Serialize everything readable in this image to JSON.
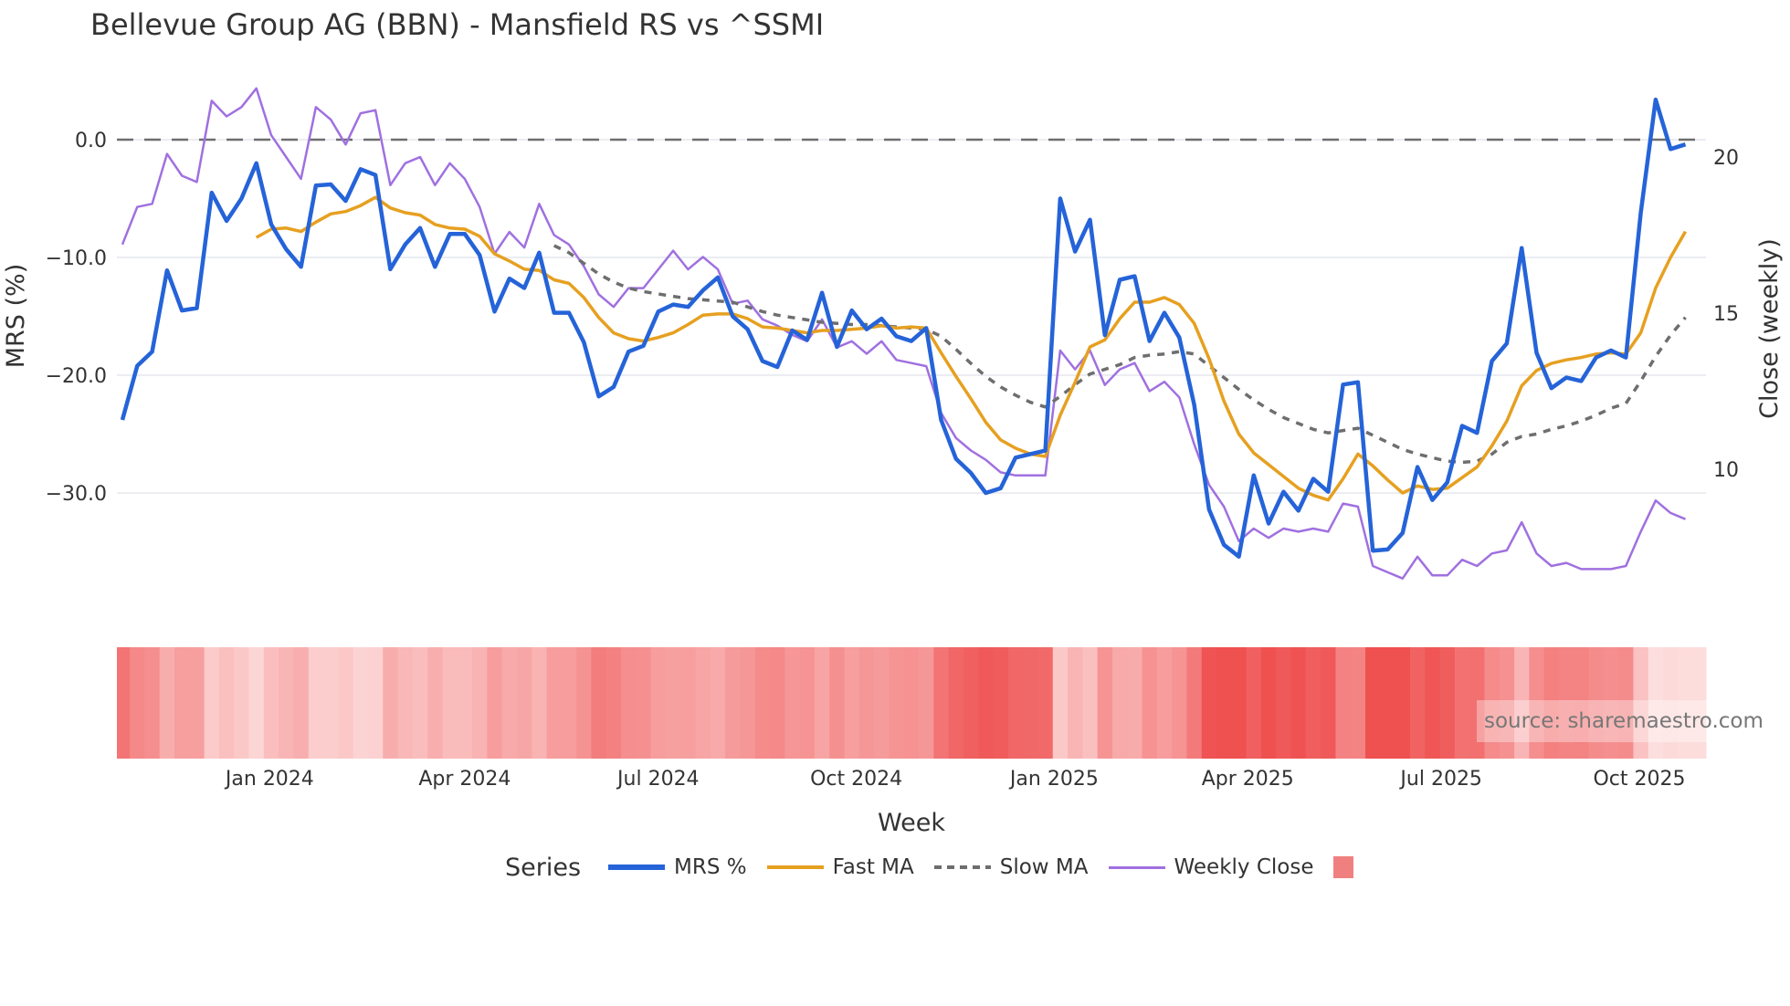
{
  "title": "Bellevue Group AG (BBN) - Mansfield RS vs ^SSMI",
  "source_label": "source: sharemaestro.com",
  "legend": {
    "title": "Series",
    "items": [
      {
        "label": "MRS %",
        "color": "#2563d8",
        "style": "solid"
      },
      {
        "label": "Fast MA",
        "color": "#e6a020",
        "style": "solid"
      },
      {
        "label": "Slow MA",
        "color": "#6e6e6e",
        "style": "dotted"
      },
      {
        "label": "Weekly Close",
        "color": "#a070e0",
        "style": "solid"
      }
    ],
    "heatmap_swatch_color": "#f08080"
  },
  "chart_data": {
    "type": "line",
    "title": "Bellevue Group AG (BBN) - Mansfield RS vs ^SSMI",
    "xlabel": "Week",
    "ylabel": "MRS (%)",
    "y2label": "Close (weekly)",
    "ylim": [
      -38,
      6
    ],
    "y2lim": [
      6.4,
      23.6
    ],
    "yticks": [
      "0.0",
      "−10.0",
      "−20.0",
      "−30.0"
    ],
    "ytick_values": [
      0,
      -10,
      -20,
      -30
    ],
    "y2ticks": [
      "20",
      "15",
      "10"
    ],
    "y2tick_values": [
      20,
      15,
      10
    ],
    "xticks": [
      "Jan 2024",
      "Apr 2024",
      "Jul 2024",
      "Oct 2024",
      "Jan 2025",
      "Apr 2025",
      "Jul 2025",
      "Oct 2025"
    ],
    "xtick_index": [
      9.9,
      23,
      36,
      49.3,
      62.6,
      75.6,
      88.6,
      101.9
    ],
    "reference_line": {
      "y": 0,
      "style": "dashed",
      "color": "#6e6e6e"
    },
    "grid": true,
    "legend_position": "bottom",
    "series": [
      {
        "name": "MRS %",
        "axis": "left",
        "values": [
          -23.8,
          -19.2,
          -18.0,
          -11.1,
          -14.5,
          -14.3,
          -4.5,
          -6.9,
          -5.0,
          -2.0,
          -7.2,
          -9.3,
          -10.8,
          -3.9,
          -3.8,
          -5.2,
          -2.5,
          -3.0,
          -11.0,
          -8.9,
          -7.5,
          -10.8,
          -8.0,
          -8.0,
          -9.8,
          -14.6,
          -11.8,
          -12.6,
          -9.6,
          -14.7,
          -14.7,
          -17.2,
          -21.8,
          -21.0,
          -18.0,
          -17.5,
          -14.6,
          -14.0,
          -14.2,
          -12.8,
          -11.7,
          -15.0,
          -16.1,
          -18.8,
          -19.3,
          -16.2,
          -17.0,
          -13.0,
          -17.6,
          -14.5,
          -16.1,
          -15.2,
          -16.7,
          -17.1,
          -16.0,
          -23.8,
          -27.1,
          -28.3,
          -30.0,
          -29.6,
          -27.0,
          -26.7,
          -26.4,
          -5.0,
          -9.5,
          -6.8,
          -16.6,
          -11.9,
          -11.6,
          -17.1,
          -14.7,
          -16.8,
          -22.5,
          -31.4,
          -34.4,
          -35.4,
          -28.5,
          -32.6,
          -29.9,
          -31.5,
          -28.8,
          -29.9,
          -20.8,
          -20.6,
          -34.9,
          -34.8,
          -33.4,
          -27.8,
          -30.6,
          -29.1,
          -24.3,
          -24.9,
          -18.8,
          -17.3,
          -9.2,
          -18.1,
          -21.1,
          -20.2,
          -20.5,
          -18.5,
          -17.9,
          -18.5,
          -6.2,
          3.4,
          -0.8,
          -0.4
        ]
      },
      {
        "name": "Fast MA",
        "axis": "left",
        "values": [
          null,
          null,
          null,
          null,
          null,
          null,
          null,
          null,
          null,
          -8.3,
          -7.6,
          -7.5,
          -7.8,
          -7.0,
          -6.3,
          -6.1,
          -5.6,
          -4.9,
          -5.8,
          -6.2,
          -6.4,
          -7.2,
          -7.5,
          -7.6,
          -8.2,
          -9.7,
          -10.3,
          -11.0,
          -11.1,
          -11.9,
          -12.2,
          -13.4,
          -15.1,
          -16.4,
          -16.9,
          -17.1,
          -16.8,
          -16.4,
          -15.7,
          -14.9,
          -14.8,
          -14.8,
          -15.2,
          -15.9,
          -16.0,
          -16.2,
          -16.4,
          -16.2,
          -16.2,
          -16.1,
          -16.0,
          -15.8,
          -16.0,
          -15.9,
          -16.0,
          -18.1,
          -20.1,
          -22.0,
          -24.0,
          -25.5,
          -26.2,
          -26.7,
          -26.9,
          -23.4,
          -20.6,
          -17.6,
          -17.0,
          -15.2,
          -13.8,
          -13.8,
          -13.4,
          -14.0,
          -15.6,
          -18.6,
          -22.2,
          -25.0,
          -26.6,
          -27.6,
          -28.6,
          -29.6,
          -30.2,
          -30.6,
          -28.8,
          -26.7,
          -27.7,
          -28.9,
          -30.0,
          -29.4,
          -29.7,
          -29.6,
          -28.7,
          -27.8,
          -26.0,
          -23.9,
          -20.9,
          -19.6,
          -19.0,
          -18.7,
          -18.5,
          -18.2,
          -18.1,
          -18.2,
          -16.4,
          -12.6,
          -10.0,
          -7.8
        ]
      },
      {
        "name": "Slow MA",
        "axis": "left",
        "values": [
          null,
          null,
          null,
          null,
          null,
          null,
          null,
          null,
          null,
          null,
          null,
          null,
          null,
          null,
          null,
          null,
          null,
          null,
          null,
          null,
          null,
          null,
          null,
          null,
          null,
          null,
          null,
          null,
          null,
          -9.0,
          -9.6,
          -10.5,
          -11.4,
          -12.1,
          -12.6,
          -12.9,
          -13.1,
          -13.3,
          -13.5,
          -13.6,
          -13.7,
          -13.8,
          -14.2,
          -14.6,
          -14.9,
          -15.1,
          -15.3,
          -15.5,
          -15.6,
          -15.7,
          -15.7,
          -15.8,
          -15.9,
          -16.0,
          -16.1,
          -16.7,
          -17.8,
          -19.0,
          -20.1,
          -21.0,
          -21.7,
          -22.3,
          -22.7,
          -21.8,
          -20.8,
          -19.9,
          -19.5,
          -19.1,
          -18.5,
          -18.3,
          -18.2,
          -18.0,
          -18.2,
          -19.2,
          -20.2,
          -21.2,
          -22.1,
          -22.9,
          -23.6,
          -24.1,
          -24.6,
          -24.9,
          -24.7,
          -24.5,
          -25.1,
          -25.7,
          -26.3,
          -26.7,
          -27.0,
          -27.3,
          -27.4,
          -27.3,
          -26.7,
          -25.7,
          -25.2,
          -25.0,
          -24.6,
          -24.3,
          -23.9,
          -23.4,
          -22.8,
          -22.4,
          -20.5,
          -18.4,
          -16.6,
          -15.1
        ]
      },
      {
        "name": "Weekly Close",
        "axis": "right",
        "values": [
          17.2,
          18.4,
          18.5,
          20.1,
          19.4,
          19.2,
          21.8,
          21.3,
          21.6,
          22.2,
          20.7,
          20.0,
          19.3,
          21.6,
          21.2,
          20.4,
          21.4,
          21.5,
          19.1,
          19.8,
          20.0,
          19.1,
          19.8,
          19.3,
          18.4,
          16.9,
          17.6,
          17.1,
          18.5,
          17.5,
          17.2,
          16.5,
          15.6,
          15.2,
          15.8,
          15.8,
          16.4,
          17.0,
          16.4,
          16.8,
          16.4,
          15.3,
          15.4,
          14.8,
          14.6,
          14.3,
          14.1,
          14.8,
          13.9,
          14.1,
          13.7,
          14.1,
          13.5,
          13.4,
          13.3,
          11.8,
          11.0,
          10.6,
          10.3,
          9.9,
          9.8,
          9.8,
          9.8,
          13.8,
          13.2,
          13.8,
          12.7,
          13.2,
          13.4,
          12.5,
          12.8,
          12.3,
          10.8,
          9.5,
          8.8,
          7.7,
          8.1,
          7.8,
          8.1,
          8.0,
          8.1,
          8.0,
          8.9,
          8.8,
          6.9,
          6.7,
          6.5,
          7.2,
          6.6,
          6.6,
          7.1,
          6.9,
          7.3,
          7.4,
          8.3,
          7.3,
          6.9,
          7.0,
          6.8,
          6.8,
          6.8,
          6.9,
          8.0,
          9.0,
          8.6,
          8.4
        ]
      }
    ],
    "heatmap": {
      "name": "MRS heat strip",
      "color_min": "#ef5050",
      "color_max": "#fde0e0",
      "based_on": "MRS %"
    }
  }
}
